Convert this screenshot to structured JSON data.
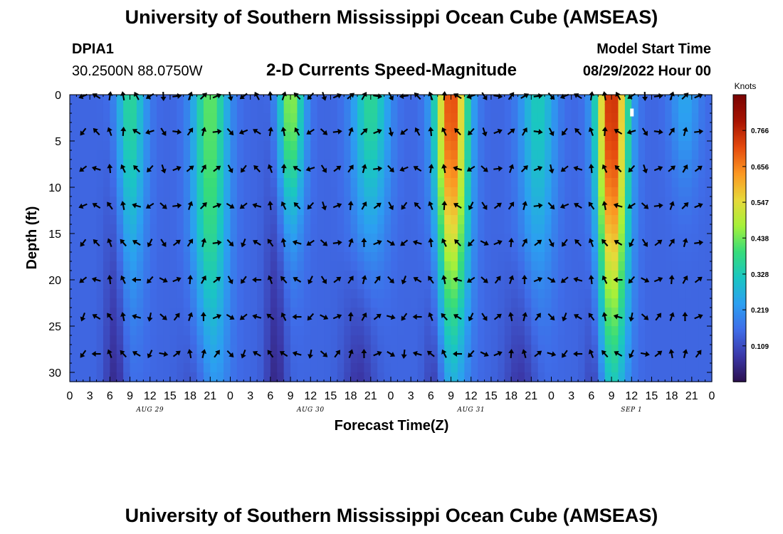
{
  "header": {
    "title": "University of Southern Mississippi Ocean Cube (AMSEAS)",
    "station_id": "DPIA1",
    "station_coords": "30.2500N  88.0750W",
    "chart_title": "2-D Currents Speed-Magnitude",
    "model_start_label": "Model Start Time",
    "model_start_value": "08/29/2022 Hour 00"
  },
  "footer": {
    "title": "University of Southern Mississippi Ocean Cube (AMSEAS)"
  },
  "chart_data": {
    "type": "heatmap",
    "title": "2-D Currents Speed-Magnitude",
    "xlabel": "Forecast Time(Z)",
    "ylabel": "Depth (ft)",
    "x_range_hours": [
      0,
      96
    ],
    "y_range_ft": [
      0,
      31
    ],
    "x_tick_labels": [
      "0",
      "3",
      "6",
      "9",
      "12",
      "15",
      "18",
      "21",
      "0",
      "3",
      "6",
      "9",
      "12",
      "15",
      "18",
      "21",
      "0",
      "3",
      "6",
      "9",
      "12",
      "15",
      "18",
      "21",
      "0",
      "3",
      "6",
      "9",
      "12",
      "15",
      "18",
      "21",
      "0"
    ],
    "y_ticks": [
      0,
      5,
      10,
      15,
      20,
      25,
      30
    ],
    "date_labels": [
      {
        "label": "AUG 29",
        "hour": 12
      },
      {
        "label": "AUG 30",
        "hour": 36
      },
      {
        "label": "AUG 31",
        "hour": 60
      },
      {
        "label": "SEP 1",
        "hour": 84
      }
    ],
    "colorbar": {
      "unit": "Knots",
      "ticks": [
        "0.766",
        "0.656",
        "0.547",
        "0.438",
        "0.328",
        "0.219",
        "0.109"
      ],
      "tick_values": [
        0.766,
        0.656,
        0.547,
        0.438,
        0.328,
        0.219,
        0.109
      ],
      "range": [
        0,
        0.875
      ],
      "colors": [
        "#2b0f4e",
        "#3b38a8",
        "#3f6ce8",
        "#2c9ff1",
        "#1ac6c2",
        "#37dc7a",
        "#a6f13a",
        "#e8d83a",
        "#fb9722",
        "#e54a0e",
        "#a81402",
        "#7a0403"
      ]
    },
    "speed_peaks_hours": [
      9,
      21,
      33,
      45,
      57,
      70,
      81,
      92
    ],
    "arrow_depths_ft": [
      0,
      4,
      8,
      12,
      16,
      20,
      24,
      28
    ]
  }
}
